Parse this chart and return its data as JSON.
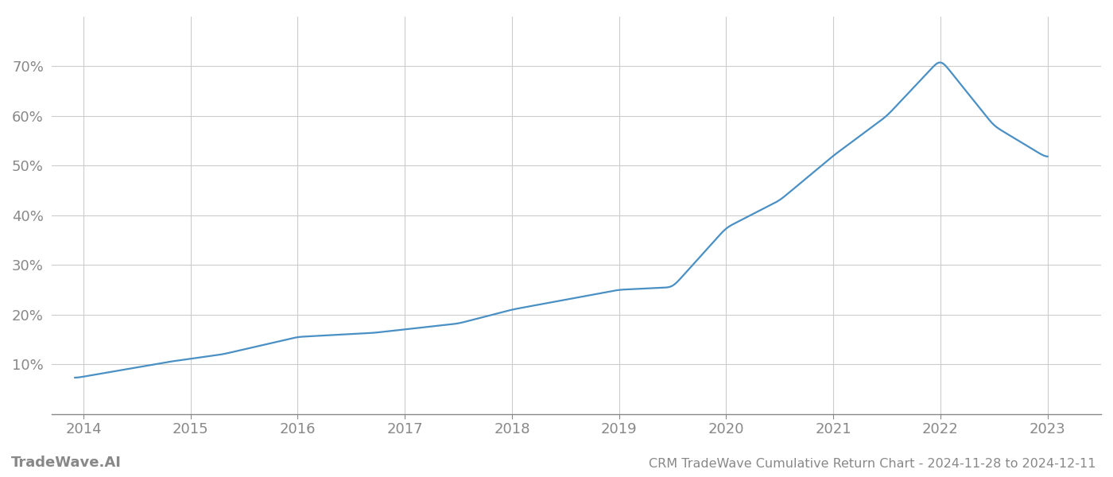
{
  "title": "CRM TradeWave Cumulative Return Chart - 2024-11-28 to 2024-12-11",
  "watermark": "TradeWave.AI",
  "line_color": "#4a90c4",
  "background_color": "#ffffff",
  "grid_color": "#cccccc",
  "x_values": [
    2013.92,
    2014.0,
    2014.8,
    2015.3,
    2016.0,
    2016.7,
    2017.5,
    2018.0,
    2018.5,
    2019.0,
    2019.5,
    2020.0,
    2020.5,
    2021.0,
    2021.5,
    2022.0,
    2022.5,
    2023.0
  ],
  "y_values": [
    7.2,
    7.5,
    10.5,
    12.0,
    15.5,
    16.3,
    18.2,
    21.0,
    23.0,
    25.0,
    25.5,
    37.5,
    43.0,
    52.0,
    60.0,
    71.5,
    58.0,
    51.5
  ],
  "xlim": [
    2013.7,
    2023.5
  ],
  "ylim": [
    0,
    80
  ],
  "yticks": [
    10,
    20,
    30,
    40,
    50,
    60,
    70
  ],
  "xticks": [
    2014,
    2015,
    2016,
    2017,
    2018,
    2019,
    2020,
    2021,
    2022,
    2023
  ],
  "line_width": 1.6,
  "title_fontsize": 11.5,
  "tick_fontsize": 13,
  "watermark_fontsize": 13,
  "axis_color": "#888888",
  "tick_color": "#888888"
}
